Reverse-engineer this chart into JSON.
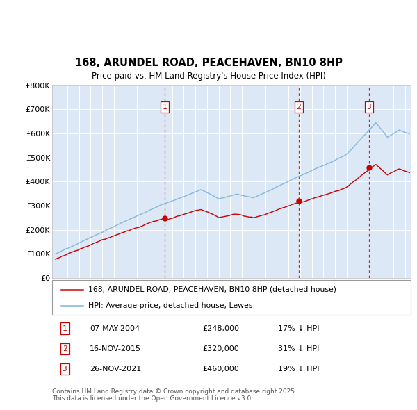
{
  "title": "168, ARUNDEL ROAD, PEACEHAVEN, BN10 8HP",
  "subtitle": "Price paid vs. HM Land Registry's House Price Index (HPI)",
  "hpi_color": "#7ab3d8",
  "price_color": "#cc0000",
  "vline_color": "#cc0000",
  "background_color": "#dce8f5",
  "ylim": [
    0,
    800000
  ],
  "yticks": [
    0,
    100000,
    200000,
    300000,
    400000,
    500000,
    600000,
    700000,
    800000
  ],
  "ytick_labels": [
    "£0",
    "£100K",
    "£200K",
    "£300K",
    "£400K",
    "£500K",
    "£600K",
    "£700K",
    "£800K"
  ],
  "xlim_start": 1994.7,
  "xlim_end": 2025.5,
  "purchases": [
    {
      "year": 2004.35,
      "price": 248000,
      "label": "1"
    },
    {
      "year": 2015.88,
      "price": 320000,
      "label": "2"
    },
    {
      "year": 2021.9,
      "price": 460000,
      "label": "3"
    }
  ],
  "legend_entries": [
    "168, ARUNDEL ROAD, PEACEHAVEN, BN10 8HP (detached house)",
    "HPI: Average price, detached house, Lewes"
  ],
  "table_rows": [
    {
      "num": "1",
      "date": "07-MAY-2004",
      "price": "£248,000",
      "hpi": "17% ↓ HPI"
    },
    {
      "num": "2",
      "date": "16-NOV-2015",
      "price": "£320,000",
      "hpi": "31% ↓ HPI"
    },
    {
      "num": "3",
      "date": "26-NOV-2021",
      "price": "£460,000",
      "hpi": "19% ↓ HPI"
    }
  ],
  "footer": "Contains HM Land Registry data © Crown copyright and database right 2025.\nThis data is licensed under the Open Government Licence v3.0."
}
